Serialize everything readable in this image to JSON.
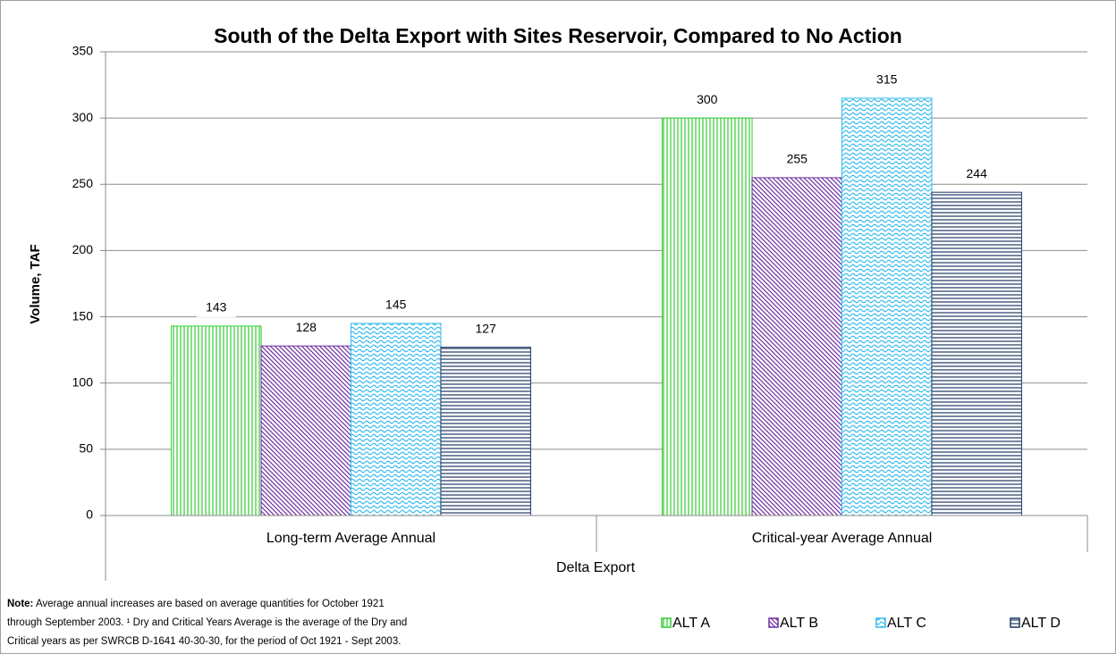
{
  "chart_data": {
    "type": "bar",
    "title": "South of the Delta Export with Sites Reservoir, Compared to No Action",
    "y_axis_label": "Volume, TAF",
    "x_axis_label": "Delta Export",
    "categories": [
      "Long-term Average Annual",
      "Critical-year Average Annual"
    ],
    "series": [
      {
        "name": "ALT A",
        "color": "#33cc33",
        "pattern": "vertical",
        "values": [
          143,
          300
        ]
      },
      {
        "name": "ALT B",
        "color": "#7030a0",
        "pattern": "diagonal",
        "values": [
          128,
          255
        ]
      },
      {
        "name": "ALT C",
        "color": "#33bbee",
        "pattern": "wave",
        "values": [
          145,
          315
        ]
      },
      {
        "name": "ALT D",
        "color": "#1f3864",
        "pattern": "horizontal",
        "values": [
          127,
          244
        ]
      }
    ],
    "ylim": [
      0,
      350
    ],
    "yticks": [
      0,
      50,
      100,
      150,
      200,
      250,
      300,
      350
    ],
    "grid": true,
    "legend": "bottom-right",
    "note": {
      "label": "Note:",
      "lines": [
        "Average annual increases are based on average quantities for October 1921",
        "through September 2003. ¹ Dry and Critical Years Average is the average of the Dry and",
        "Critical years as per SWRCB D-1641 40-30-30, for the period of Oct 1921 - Sept 2003."
      ]
    }
  }
}
